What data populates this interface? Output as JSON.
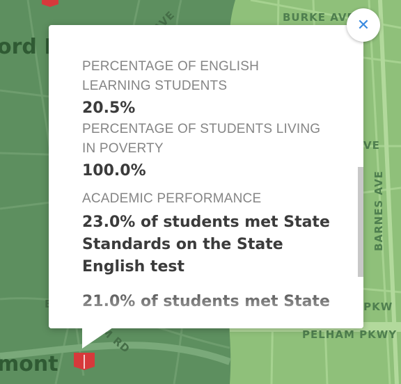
{
  "map": {
    "streets": [
      "BURKE AVE",
      "AVE",
      "VE",
      "BARNES AVE",
      "M PKW",
      "PELHAM PKWY",
      "M RD",
      "E"
    ],
    "places": [
      "ord P",
      "mont"
    ],
    "colors": {
      "park": "#5d8f5f",
      "urban": "#8fc07a",
      "road_dark": "#6b9a6b",
      "road_light": "#a3cf8c",
      "school_marker": "#d7393b"
    }
  },
  "popup": {
    "fields": [
      {
        "label": "PERCENTAGE OF ENGLISH LEARNING STUDENTS",
        "value": "20.5%"
      },
      {
        "label": "PERCENTAGE OF STUDENTS LIVING IN POVERTY",
        "value": "100.0%"
      }
    ],
    "academic": {
      "label": "ACADEMIC PERFORMANCE",
      "english": "23.0% of students met State Standards on the State English test",
      "math_partial": "21.0% of students met State"
    },
    "close_glyph": "✕",
    "scroll_progress": 0.55
  }
}
